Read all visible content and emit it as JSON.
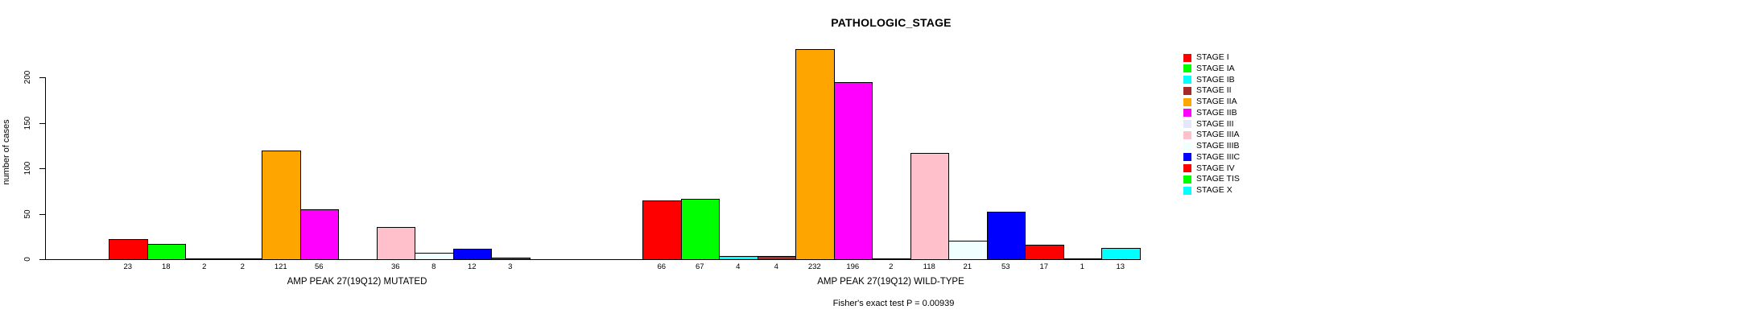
{
  "chart_data": {
    "type": "bar",
    "title": "PATHOLOGIC_STAGE",
    "ylabel": "number of cases",
    "xlabel": "",
    "ylim": [
      0,
      232
    ],
    "yticks": [
      0,
      50,
      100,
      150,
      200
    ],
    "grid": false,
    "legend_position": "right-margin",
    "bar_value_labels": "counts shown under each bar; zero counts unlabeled",
    "categories": [
      "STAGE I",
      "STAGE IA",
      "STAGE IB",
      "STAGE II",
      "STAGE IIA",
      "STAGE IIB",
      "STAGE III",
      "STAGE IIIA",
      "STAGE IIIB",
      "STAGE IIIC",
      "STAGE IV",
      "STAGE TIS",
      "STAGE X"
    ],
    "colors": [
      "#FF0000",
      "#00FF00",
      "#00FFFF",
      "#A52A2A",
      "#FFA500",
      "#FF00FF",
      "#E6E6FA",
      "#FFC0CB",
      "#F0FFFF",
      "#0000FF",
      "#FF0000",
      "#00FF00",
      "#00FFFF"
    ],
    "series": [
      {
        "name": "AMP PEAK 27(19Q12) MUTATED",
        "values": [
          23,
          18,
          2,
          2,
          121,
          56,
          0,
          36,
          8,
          12,
          3,
          0,
          0
        ]
      },
      {
        "name": "AMP PEAK 27(19Q12) WILD-TYPE",
        "values": [
          66,
          67,
          4,
          4,
          232,
          196,
          2,
          118,
          21,
          53,
          17,
          1,
          13
        ]
      }
    ],
    "annotation": "Fisher's exact test P = 0.00939"
  }
}
